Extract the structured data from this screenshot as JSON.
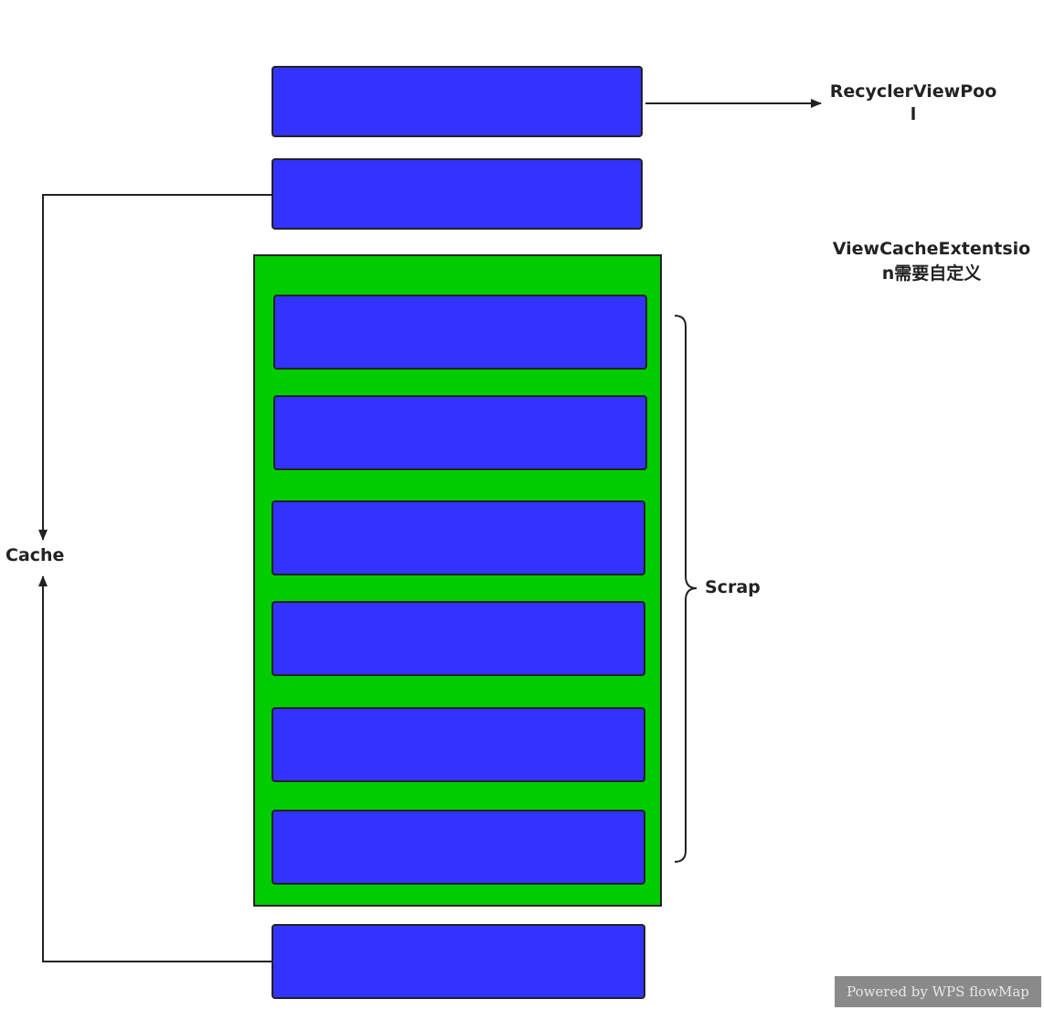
{
  "labels": {
    "pool_line1": "RecyclerViewPoo",
    "pool_line2": "l",
    "ext_line1": "ViewCacheExtentsio",
    "ext_line2": "n需要自定义",
    "cache": "Cache",
    "scrap": "Scrap"
  },
  "watermark": "Powered by WPS flowMap",
  "colors": {
    "box": "#3333ff",
    "scrap_container": "#00cc00",
    "line": "#222222"
  }
}
